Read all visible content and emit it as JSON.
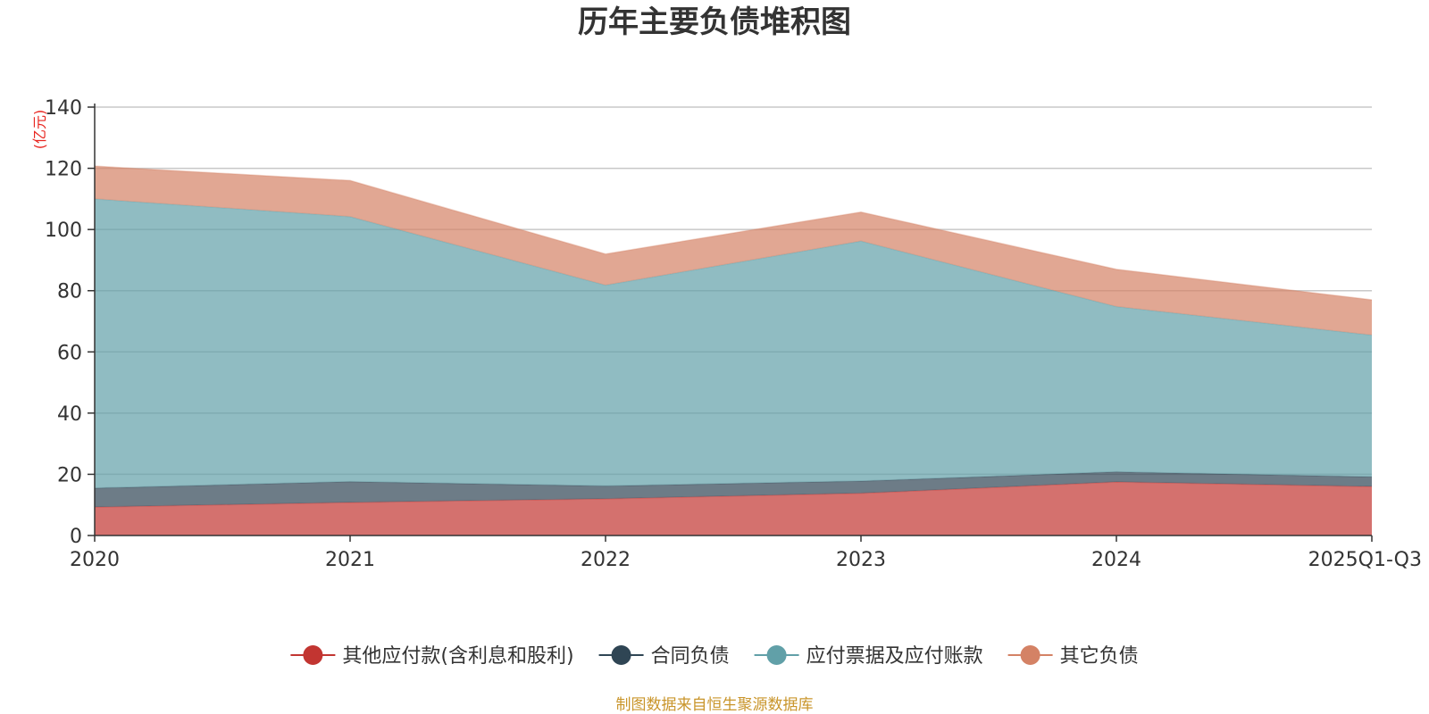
{
  "chart_data": {
    "type": "area",
    "stacked": true,
    "title": "历年主要负债堆积图",
    "unit_label": "(亿元)",
    "categories": [
      "2020",
      "2021",
      "2022",
      "2023",
      "2024",
      "2025Q1-Q3"
    ],
    "ylim": [
      0,
      140
    ],
    "yticks": [
      "0",
      "20",
      "40",
      "60",
      "80",
      "100",
      "120",
      "140"
    ],
    "grid": true,
    "legend_position": "bottom",
    "series": [
      {
        "name": "其他应付款(含利息和股利)",
        "color": "#c23531",
        "values": [
          9.3,
          10.8,
          12.0,
          13.8,
          17.5,
          16.0
        ]
      },
      {
        "name": "合同负债",
        "color": "#2f4554",
        "values": [
          6.2,
          6.8,
          4.2,
          4.0,
          3.3,
          3.2
        ]
      },
      {
        "name": "应付票据及应付账款",
        "color": "#61a0a8",
        "values": [
          94.5,
          86.6,
          65.6,
          78.4,
          54.0,
          46.3
        ]
      },
      {
        "name": "其它负债",
        "color": "#d48265",
        "values": [
          10.7,
          11.8,
          10.2,
          9.5,
          12.2,
          11.5
        ]
      }
    ],
    "source": "制图数据来自恒生聚源数据库"
  }
}
